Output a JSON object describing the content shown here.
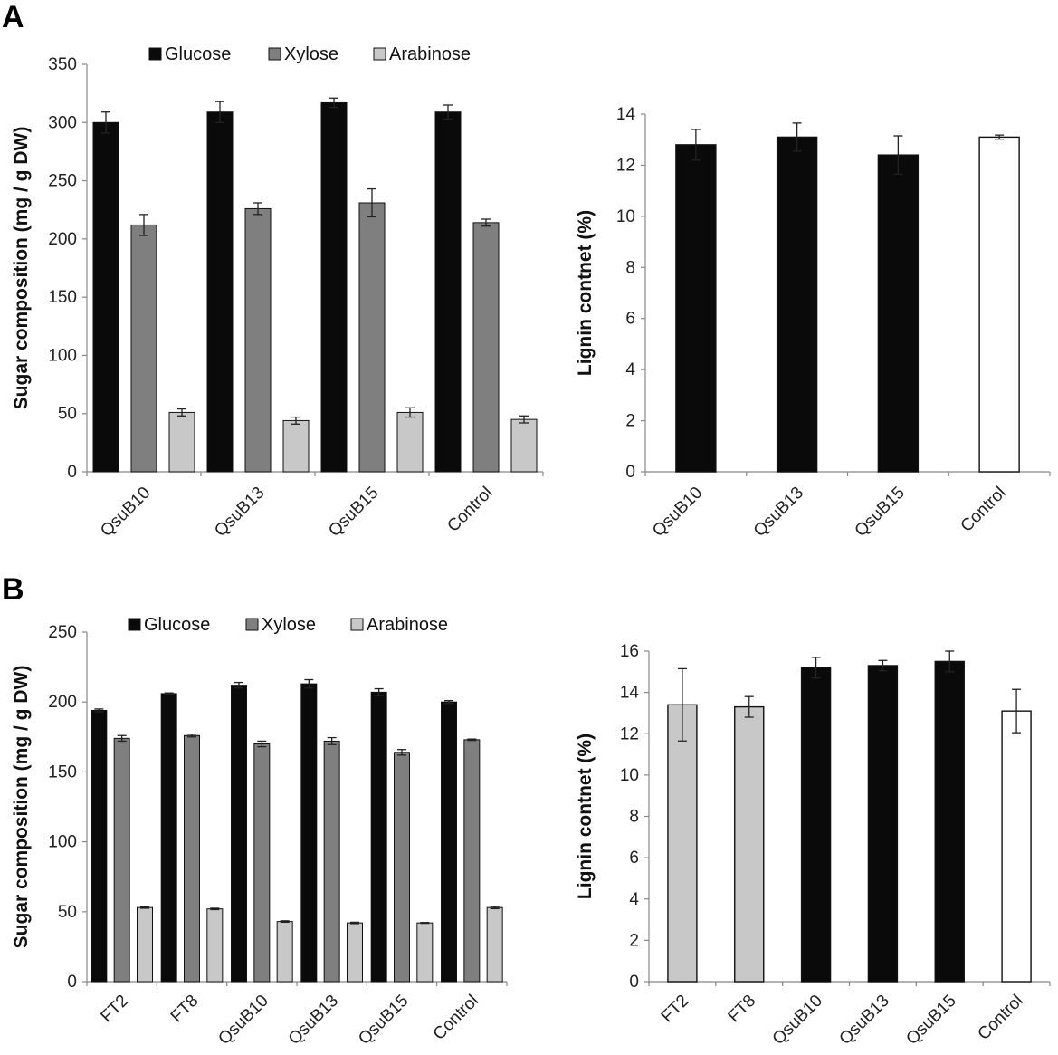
{
  "panels": {
    "a_label": "A",
    "b_label": "B"
  },
  "colors": {
    "glucose": "#0a0a0a",
    "xylose": "#7f7f7f",
    "arabinose": "#c8c8c8",
    "control": "#ffffff",
    "bar_stroke": "#111111"
  },
  "chart_data": [
    {
      "id": "A1",
      "type": "bar",
      "title": "",
      "xlabel": "",
      "ylabel": "Sugar composition (mg / g DW)",
      "ylim": [
        0,
        350
      ],
      "yticks": [
        0,
        50,
        100,
        150,
        200,
        250,
        300,
        350
      ],
      "categories": [
        "QsuB10",
        "QsuB13",
        "QsuB15",
        "Control"
      ],
      "legend_position": "top",
      "series": [
        {
          "name": "Glucose",
          "color": "#0a0a0a",
          "values": [
            300,
            309,
            317,
            309
          ],
          "errors": [
            9,
            9,
            4,
            6
          ]
        },
        {
          "name": "Xylose",
          "color": "#7f7f7f",
          "values": [
            212,
            226,
            231,
            214
          ],
          "errors": [
            9,
            5,
            12,
            3
          ]
        },
        {
          "name": "Arabinose",
          "color": "#c8c8c8",
          "values": [
            51,
            44,
            51,
            45
          ],
          "errors": [
            3,
            3,
            4,
            3
          ]
        }
      ]
    },
    {
      "id": "A2",
      "type": "bar",
      "title": "",
      "xlabel": "",
      "ylabel": "Lignin contnet (%)",
      "ylim": [
        0,
        14
      ],
      "yticks": [
        0,
        2,
        4,
        6,
        8,
        10,
        12,
        14
      ],
      "categories": [
        "QsuB10",
        "QsuB13",
        "QsuB15",
        "Control"
      ],
      "values": [
        12.8,
        13.1,
        12.4,
        13.1
      ],
      "errors": [
        0.6,
        0.55,
        0.75,
        0.08
      ],
      "bar_colors": [
        "#0a0a0a",
        "#0a0a0a",
        "#0a0a0a",
        "#ffffff"
      ]
    },
    {
      "id": "B1",
      "type": "bar",
      "title": "",
      "xlabel": "",
      "ylabel": "Sugar composition (mg / g DW)",
      "ylim": [
        0,
        250
      ],
      "yticks": [
        0,
        50,
        100,
        150,
        200,
        250
      ],
      "categories": [
        "FT2",
        "FT8",
        "QsuB10",
        "QsuB13",
        "QsuB15",
        "Control"
      ],
      "legend_position": "top",
      "series": [
        {
          "name": "Glucose",
          "color": "#0a0a0a",
          "values": [
            194,
            206,
            212,
            213,
            207,
            200
          ],
          "errors": [
            1,
            0.5,
            2,
            3,
            2.5,
            1
          ]
        },
        {
          "name": "Xylose",
          "color": "#7f7f7f",
          "values": [
            174,
            176,
            170,
            172,
            164,
            173
          ],
          "errors": [
            2,
            1,
            2,
            2.5,
            2,
            0.5
          ]
        },
        {
          "name": "Arabinose",
          "color": "#c8c8c8",
          "values": [
            53,
            52,
            43,
            42,
            42,
            53
          ],
          "errors": [
            0.5,
            0.5,
            0.5,
            0.5,
            0.3,
            0.8
          ]
        }
      ]
    },
    {
      "id": "B2",
      "type": "bar",
      "title": "",
      "xlabel": "",
      "ylabel": "Lignin contnet (%)",
      "ylim": [
        0,
        16
      ],
      "yticks": [
        0,
        2,
        4,
        6,
        8,
        10,
        12,
        14,
        16
      ],
      "categories": [
        "FT2",
        "FT8",
        "QsuB10",
        "QsuB13",
        "QsuB15",
        "Control"
      ],
      "values": [
        13.4,
        13.3,
        15.2,
        15.3,
        15.5,
        13.1
      ],
      "errors": [
        1.75,
        0.5,
        0.5,
        0.25,
        0.5,
        1.05
      ],
      "bar_colors": [
        "#c8c8c8",
        "#c8c8c8",
        "#0a0a0a",
        "#0a0a0a",
        "#0a0a0a",
        "#ffffff"
      ]
    }
  ]
}
